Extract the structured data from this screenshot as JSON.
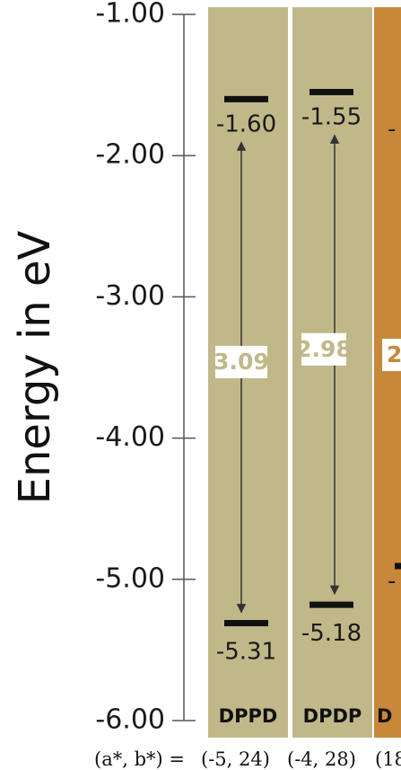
{
  "chart_data": {
    "type": "energy-level",
    "ylabel": "Energy in eV",
    "ylim": [
      -6.0,
      -1.0
    ],
    "yticks": [
      "-1.00",
      "-2.00",
      "-3.00",
      "-4.00",
      "-5.00",
      "-6.00"
    ],
    "categories": [
      "DPPD",
      "DPDP",
      "D"
    ],
    "lumo": [
      -1.6,
      -1.55
    ],
    "lumo_labels": [
      "-1.60",
      "-1.55",
      "-"
    ],
    "homo": [
      -5.31,
      -5.18
    ],
    "homo_labels": [
      "-5.31",
      "-5.18",
      "-"
    ],
    "band_gap_labels": [
      "3.09",
      "2.98",
      "2"
    ],
    "column_colors": [
      "#c1b88a",
      "#c1b88a",
      "#c8883a"
    ],
    "color_coordinates": {
      "label": "(a*, b*) =",
      "values": [
        "(-5, 24)",
        "(-4, 28)",
        "(18"
      ]
    }
  }
}
